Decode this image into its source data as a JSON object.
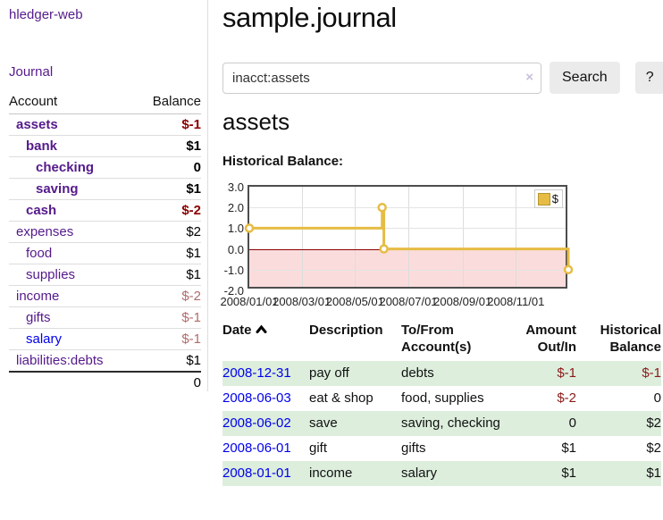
{
  "app": {
    "title": "hledger-web"
  },
  "sidebar": {
    "journal_link": "Journal",
    "accounts_table": {
      "account_header": "Account",
      "balance_header": "Balance",
      "rows": [
        {
          "name": "assets",
          "level": 1,
          "bold": true,
          "balance": "$-1",
          "balance_style": "neg-strong",
          "link_style": "purple"
        },
        {
          "name": "bank",
          "level": 2,
          "bold": true,
          "balance": "$1",
          "balance_style": "pos",
          "link_style": "purple"
        },
        {
          "name": "checking",
          "level": 3,
          "bold": true,
          "balance": "0",
          "balance_style": "pos",
          "link_style": "purple"
        },
        {
          "name": "saving",
          "level": 3,
          "bold": true,
          "balance": "$1",
          "balance_style": "pos",
          "link_style": "purple"
        },
        {
          "name": "cash",
          "level": 2,
          "bold": true,
          "balance": "$-2",
          "balance_style": "neg-strong",
          "link_style": "purple"
        },
        {
          "name": "expenses",
          "level": 1,
          "bold": false,
          "balance": "$2",
          "balance_style": "pos",
          "link_style": "purple"
        },
        {
          "name": "food",
          "level": 2,
          "bold": false,
          "balance": "$1",
          "balance_style": "pos",
          "link_style": "purple"
        },
        {
          "name": "supplies",
          "level": 2,
          "bold": false,
          "balance": "$1",
          "balance_style": "pos",
          "link_style": "purple"
        },
        {
          "name": "income",
          "level": 1,
          "bold": false,
          "balance": "$-2",
          "balance_style": "neg-muted",
          "link_style": "purple"
        },
        {
          "name": "gifts",
          "level": 2,
          "bold": false,
          "balance": "$-1",
          "balance_style": "neg-muted",
          "link_style": "purple"
        },
        {
          "name": "salary",
          "level": 2,
          "bold": false,
          "balance": "$-1",
          "balance_style": "neg-muted",
          "link_style": "blue"
        },
        {
          "name": "liabilities:debts",
          "level": 1,
          "bold": false,
          "balance": "$1",
          "balance_style": "pos",
          "link_style": "purple"
        }
      ],
      "total": "0"
    }
  },
  "main": {
    "title": "sample.journal",
    "search": {
      "value": "inacct:assets",
      "clear_glyph": "×",
      "button_label": "Search",
      "help_label": "?"
    },
    "account_heading": "assets",
    "chart_heading": "Historical Balance:"
  },
  "chart_data": {
    "type": "line",
    "step": true,
    "title": "Historical Balance",
    "series": [
      {
        "name": "$",
        "color": "#e6bc44",
        "points": [
          {
            "date": "2008-01-01",
            "value": 1
          },
          {
            "date": "2008-06-01",
            "value": 2
          },
          {
            "date": "2008-06-03",
            "value": 0
          },
          {
            "date": "2008-12-31",
            "value": -1
          }
        ]
      }
    ],
    "ylim": [
      -2,
      3
    ],
    "yticks": [
      "3.0",
      "2.0",
      "1.0",
      "0.0",
      "-1.0",
      "-2.0"
    ],
    "xticks": [
      "2008/01/01",
      "2008/03/01",
      "2008/05/01",
      "2008/07/01",
      "2008/09/01",
      "2008/11/01"
    ],
    "x_start": "2008-01-01",
    "x_end": "2009-01-01",
    "grid": true,
    "legend": {
      "label": "$",
      "position": "top-right"
    },
    "negative_fill_color": "#fbdcdc",
    "zero_line_color": "#8b0000"
  },
  "transactions": {
    "headers": [
      {
        "line1": "Date",
        "line2": ""
      },
      {
        "line1": "Description",
        "line2": ""
      },
      {
        "line1": "To/From",
        "line2": "Account(s)"
      },
      {
        "line1": "Amount",
        "line2": "Out/In"
      },
      {
        "line1": "Historical",
        "line2": "Balance"
      }
    ],
    "sort_icon": "chevron-up",
    "rows": [
      {
        "date": "2008-12-31",
        "description": "pay off",
        "accounts": "debts",
        "amount": "$-1",
        "balance": "$-1"
      },
      {
        "date": "2008-06-03",
        "description": "eat & shop",
        "accounts": "food, supplies",
        "amount": "$-2",
        "balance": "0"
      },
      {
        "date": "2008-06-02",
        "description": "save",
        "accounts": "saving, checking",
        "amount": "0",
        "balance": "$2"
      },
      {
        "date": "2008-06-01",
        "description": "gift",
        "accounts": "gifts",
        "amount": "$1",
        "balance": "$2"
      },
      {
        "date": "2008-01-01",
        "description": "income",
        "accounts": "salary",
        "amount": "$1",
        "balance": "$1"
      }
    ]
  }
}
